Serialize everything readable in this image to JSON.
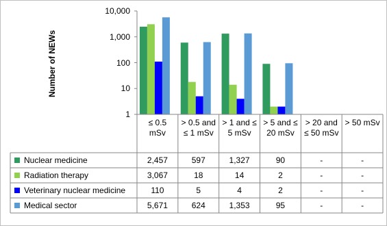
{
  "chart_data": {
    "type": "bar",
    "y_label": "Number of NEWs",
    "log_scale": true,
    "grid": false,
    "ylim": [
      1,
      10000
    ],
    "yticks": [
      1,
      10,
      100,
      {
        "value": 1000,
        "label": "1,000"
      },
      {
        "value": 10000,
        "label": "10,000"
      }
    ],
    "categories": [
      "≤ 0.5 mSv",
      "> 0.5 and ≤ 1 mSv",
      "> 1 and ≤ 5 mSv",
      "> 5 and ≤ 20 mSv",
      "> 20 and ≤ 50 mSv",
      "> 50 mSv"
    ],
    "series": [
      {
        "name": "Nuclear medicine",
        "color": "#2f9b5f",
        "values": [
          2457,
          597,
          1327,
          90,
          null,
          null
        ],
        "value_labels": [
          "2,457",
          "597",
          "1,327",
          "90",
          "-",
          "-"
        ]
      },
      {
        "name": "Radiation therapy",
        "color": "#92d050",
        "values": [
          3067,
          18,
          14,
          2,
          null,
          null
        ],
        "value_labels": [
          "3,067",
          "18",
          "14",
          "2",
          "-",
          "-"
        ]
      },
      {
        "name": "Veterinary nuclear medicine",
        "color": "#0000ff",
        "values": [
          110,
          5,
          4,
          2,
          null,
          null
        ],
        "value_labels": [
          "110",
          "5",
          "4",
          "2",
          "-",
          "-"
        ]
      },
      {
        "name": "Medical sector",
        "color": "#5b9bd5",
        "values": [
          5671,
          624,
          1353,
          95,
          null,
          null
        ],
        "value_labels": [
          "5,671",
          "624",
          "1,353",
          "95",
          "-",
          "-"
        ]
      }
    ]
  }
}
